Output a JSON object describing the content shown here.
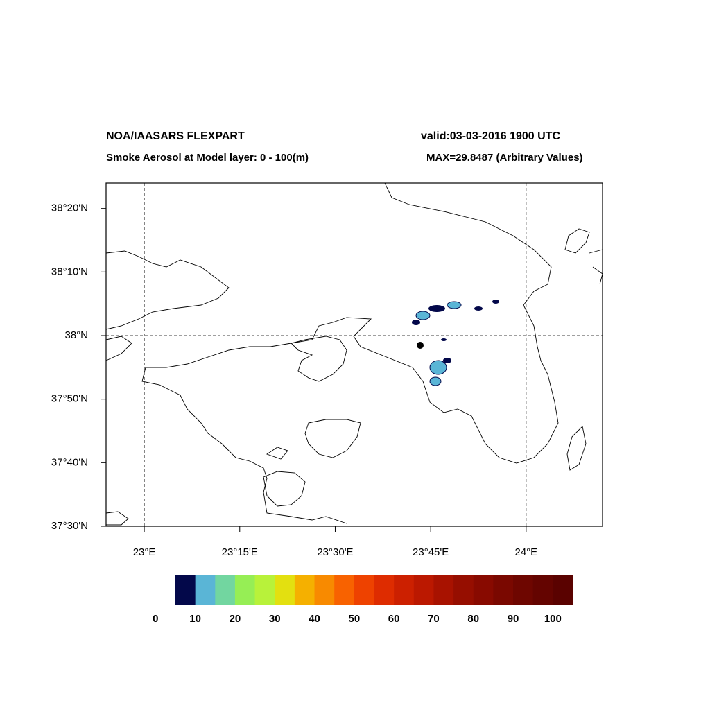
{
  "chart_data": {
    "type": "map",
    "title": "NOA/IAASARS FLEXPART",
    "valid": "valid:03-03-2016 1900 UTC",
    "subtitle": "Smoke Aerosol at Model layer: 0 - 100(m)",
    "max": "MAX=29.8487 (Arbitrary Values)",
    "xlim": [
      22.9,
      24.2
    ],
    "ylim": [
      37.5,
      38.4
    ],
    "xticks": [
      {
        "value": 23,
        "label": "23°E"
      },
      {
        "value": 23.25,
        "label": "23°15'E"
      },
      {
        "value": 23.5,
        "label": "23°30'E"
      },
      {
        "value": 23.75,
        "label": "23°45'E"
      },
      {
        "value": 24,
        "label": "24°E"
      }
    ],
    "yticks": [
      {
        "value": 38.3333,
        "label": "38°20'N"
      },
      {
        "value": 38.1667,
        "label": "38°10'N"
      },
      {
        "value": 38,
        "label": "38°N"
      },
      {
        "value": 37.8333,
        "label": "37°50'N"
      },
      {
        "value": 37.6667,
        "label": "37°40'N"
      },
      {
        "value": 37.5,
        "label": "37°30'N"
      }
    ],
    "xgrid": [
      23,
      24
    ],
    "ygrid": [
      38
    ],
    "colorbar": {
      "range": [
        5,
        105
      ],
      "ticks": [
        0,
        10,
        20,
        30,
        40,
        50,
        60,
        70,
        80,
        90,
        100
      ],
      "colors": [
        "#03084a",
        "#5ab5d6",
        "#72d6a0",
        "#96ee55",
        "#b8f23a",
        "#e3e010",
        "#f5b000",
        "#f88a00",
        "#f86200",
        "#ee4200",
        "#de2c00",
        "#cc2000",
        "#bb1800",
        "#a81200",
        "#960e00",
        "#880a00",
        "#7a0800",
        "#6e0600",
        "#640400",
        "#5a0200"
      ]
    }
  }
}
